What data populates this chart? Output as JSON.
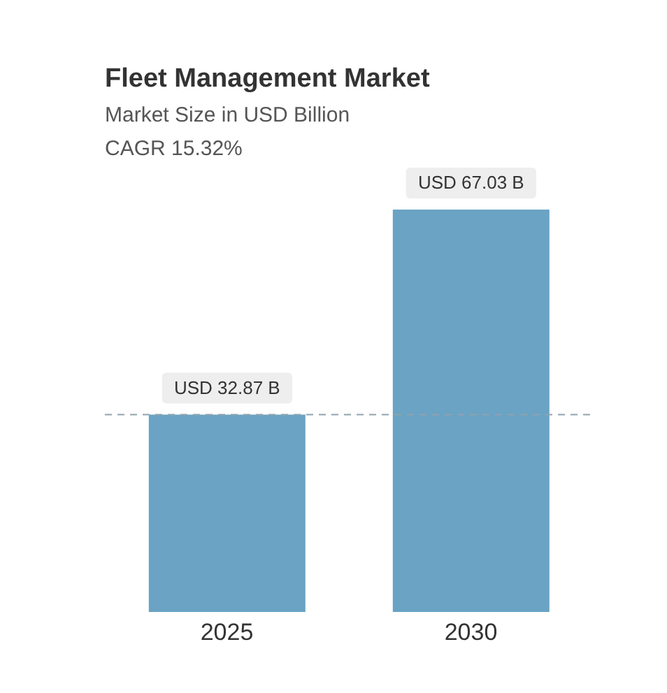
{
  "chart_data": {
    "type": "bar",
    "title": "Fleet Management Market",
    "subtitle": "Market Size in USD Billion",
    "annotations": [
      "CAGR 15.32%"
    ],
    "categories": [
      "2025",
      "2030"
    ],
    "values": [
      32.87,
      67.03
    ],
    "value_labels": [
      "USD 32.87 B",
      "USD 67.03 B"
    ],
    "color": "#6aa3c3",
    "ref_lines": [
      {
        "axis": "y",
        "value": 32.87,
        "label": null,
        "color": "#8fa3ad",
        "line_style": "dashed"
      }
    ]
  }
}
